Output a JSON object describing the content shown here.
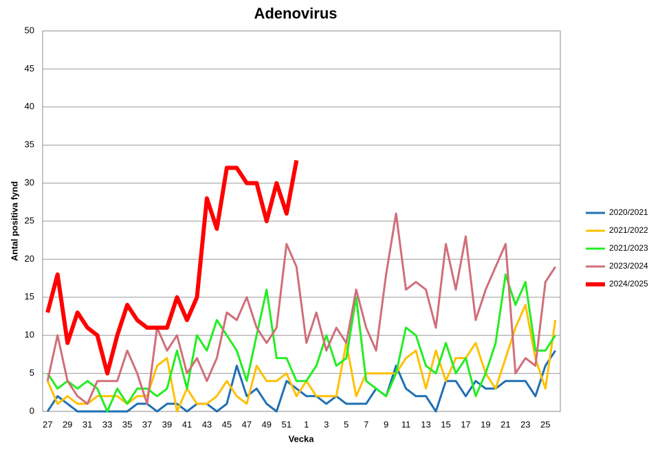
{
  "chart_data": {
    "type": "line",
    "title": "Adenovirus",
    "x_label": "Vecka",
    "y_label": "Antal positiva fynd",
    "categories": [
      "27",
      null,
      "29",
      null,
      "31",
      null,
      "33",
      null,
      "35",
      null,
      "37",
      null,
      "39",
      null,
      "41",
      null,
      "43",
      null,
      "45",
      null,
      "47",
      null,
      "49",
      null,
      "51",
      null,
      "1",
      null,
      "3",
      null,
      "5",
      null,
      "7",
      null,
      "9",
      null,
      "11",
      null,
      "13",
      null,
      "15",
      null,
      "17",
      null,
      "19",
      null,
      "21",
      null,
      "23",
      null,
      "25",
      null
    ],
    "series": [
      {
        "name": "2020/2021",
        "color": "#1f6fb4",
        "width": 3,
        "values": [
          0,
          2,
          1,
          0,
          0,
          0,
          0,
          0,
          0,
          1,
          1,
          0,
          1,
          1,
          0,
          1,
          1,
          0,
          1,
          6,
          2,
          3,
          1,
          0,
          4,
          3,
          2,
          2,
          1,
          2,
          1,
          1,
          1,
          3,
          2,
          6,
          3,
          2,
          2,
          0,
          4,
          4,
          2,
          4,
          3,
          3,
          4,
          4,
          4,
          2,
          6,
          8
        ]
      },
      {
        "name": "2021/2022",
        "color": "#ffc000",
        "width": 3,
        "values": [
          4,
          1,
          2,
          1,
          1,
          2,
          2,
          2,
          1,
          2,
          2,
          6,
          7,
          0,
          3,
          1,
          1,
          2,
          4,
          2,
          1,
          6,
          4,
          4,
          5,
          2,
          4,
          2,
          2,
          2,
          9,
          2,
          5,
          5,
          5,
          5,
          7,
          8,
          3,
          8,
          4,
          7,
          7,
          9,
          5,
          3,
          7,
          11,
          14,
          7,
          3,
          12
        ]
      },
      {
        "name": "2021/2023",
        "color": "#22ee22",
        "width": 3,
        "values": [
          5,
          3,
          4,
          3,
          4,
          3,
          0,
          3,
          1,
          3,
          3,
          2,
          3,
          8,
          3,
          10,
          8,
          12,
          10,
          8,
          4,
          10,
          16,
          7,
          7,
          4,
          4,
          6,
          10,
          6,
          7,
          15,
          4,
          3,
          2,
          5,
          11,
          10,
          6,
          5,
          9,
          5,
          7,
          2,
          5,
          9,
          18,
          14,
          17,
          8,
          8,
          10
        ]
      },
      {
        "name": "2023/2024",
        "color": "#d06e7a",
        "width": 3,
        "values": [
          4,
          10,
          4,
          2,
          1,
          4,
          4,
          4,
          8,
          5,
          1,
          11,
          8,
          10,
          5,
          7,
          4,
          7,
          13,
          12,
          15,
          11,
          9,
          11,
          22,
          19,
          9,
          13,
          8,
          11,
          9,
          16,
          11,
          8,
          18,
          26,
          16,
          17,
          16,
          11,
          22,
          16,
          23,
          12,
          16,
          19,
          22,
          5,
          7,
          6,
          17,
          19
        ]
      },
      {
        "name": "2024/2025",
        "color": "#ff0000",
        "width": 6,
        "values": [
          13,
          18,
          9,
          13,
          11,
          10,
          5,
          10,
          14,
          12,
          11,
          11,
          11,
          15,
          12,
          15,
          28,
          24,
          32,
          32,
          30,
          30,
          25,
          30,
          26,
          33,
          null,
          null,
          null,
          null,
          null,
          null,
          null,
          null,
          null,
          null,
          null,
          null,
          null,
          null,
          null,
          null,
          null,
          null,
          null,
          null,
          null,
          null,
          null,
          null,
          null,
          null
        ]
      }
    ],
    "ylim": [
      0,
      50
    ],
    "yticks": [
      0,
      5,
      10,
      15,
      20,
      25,
      30,
      35,
      40,
      45,
      50
    ],
    "grid": true,
    "legend": "right"
  }
}
